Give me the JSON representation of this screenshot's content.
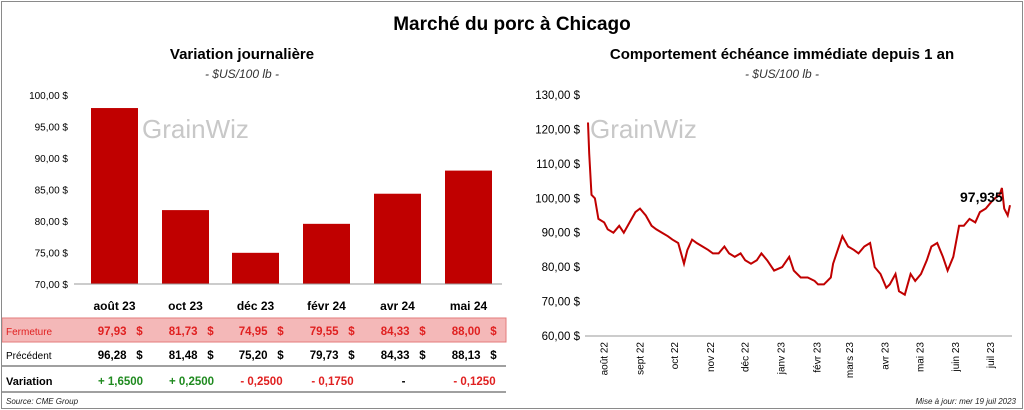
{
  "title": "Marché du porc à Chicago",
  "left_chart": {
    "title": "Variation journalière",
    "unit": "- $US/100 lb -"
  },
  "right_chart": {
    "title": "Comportement échéance immédiate depuis 1 an",
    "unit": "- $US/100 lb -",
    "last_value_label": "97,935"
  },
  "watermark": "GrainWiz",
  "table": {
    "rows": [
      {
        "label": "Fermeture",
        "values": [
          "97,93",
          "81,73",
          "74,95",
          "79,55",
          "84,33",
          "88,00"
        ],
        "suffix": "$"
      },
      {
        "label": "Précédent",
        "values": [
          "96,28",
          "81,48",
          "75,20",
          "79,73",
          "84,33",
          "88,13"
        ],
        "suffix": "$"
      },
      {
        "label": "Variation",
        "values": [
          "+ 1,6500",
          "+ 0,2500",
          "- 0,2500",
          "- 0,1750",
          "-",
          "- 0,1250"
        ]
      }
    ]
  },
  "colors": {
    "bar": "#c00000",
    "line": "#c00000",
    "highlight_row": "#f4b8b8",
    "positive": "#1f8a1f",
    "negative": "#e02020"
  },
  "source": "Source: CME Group",
  "updated": "Mise à jour: mer 19 juil 2023",
  "chart_data": [
    {
      "type": "bar",
      "categories": [
        "août 23",
        "oct 23",
        "déc 23",
        "févr 24",
        "avr 24",
        "mai 24"
      ],
      "values": [
        97.93,
        81.73,
        74.95,
        79.55,
        84.33,
        88.0
      ],
      "title": "Variation journalière",
      "ylim": [
        70,
        100
      ],
      "yticks": [
        "100,00 $",
        "95,00 $",
        "90,00 $",
        "85,00 $",
        "80,00 $",
        "75,00 $",
        "70,00 $"
      ],
      "grid": false
    },
    {
      "type": "line",
      "title": "Comportement échéance immédiate depuis 1 an",
      "ylim": [
        60,
        130
      ],
      "yticks": [
        "130,00 $",
        "120,00 $",
        "110,00 $",
        "100,00 $",
        "90,00 $",
        "80,00 $",
        "70,00 $",
        "60,00 $"
      ],
      "xticks": [
        "août 22",
        "sept 22",
        "oct 22",
        "nov 22",
        "déc 22",
        "janv 23",
        "févr 23",
        "mars 23",
        "avr 23",
        "mai 23",
        "juin 23",
        "juil 23"
      ],
      "x": [
        "2022-07-19",
        "2022-07-20",
        "2022-07-22",
        "2022-07-25",
        "2022-07-28",
        "2022-08-02",
        "2022-08-05",
        "2022-08-10",
        "2022-08-15",
        "2022-08-19",
        "2022-08-24",
        "2022-08-29",
        "2022-09-02",
        "2022-09-07",
        "2022-09-12",
        "2022-09-16",
        "2022-09-21",
        "2022-09-26",
        "2022-09-30",
        "2022-10-05",
        "2022-10-10",
        "2022-10-13",
        "2022-10-17",
        "2022-10-21",
        "2022-10-26",
        "2022-10-31",
        "2022-11-04",
        "2022-11-09",
        "2022-11-14",
        "2022-11-18",
        "2022-11-23",
        "2022-11-28",
        "2022-12-02",
        "2022-12-07",
        "2022-12-12",
        "2022-12-16",
        "2022-12-21",
        "2022-12-27",
        "2023-01-03",
        "2023-01-09",
        "2023-01-13",
        "2023-01-19",
        "2023-01-25",
        "2023-01-31",
        "2023-02-03",
        "2023-02-08",
        "2023-02-14",
        "2023-02-16",
        "2023-02-21",
        "2023-02-24",
        "2023-03-01",
        "2023-03-06",
        "2023-03-10",
        "2023-03-15",
        "2023-03-20",
        "2023-03-24",
        "2023-03-29",
        "2023-04-03",
        "2023-04-06",
        "2023-04-11",
        "2023-04-14",
        "2023-04-19",
        "2023-04-24",
        "2023-04-28",
        "2023-05-03",
        "2023-05-08",
        "2023-05-12",
        "2023-05-17",
        "2023-05-22",
        "2023-05-26",
        "2023-05-31",
        "2023-06-05",
        "2023-06-09",
        "2023-06-14",
        "2023-06-19",
        "2023-06-23",
        "2023-06-28",
        "2023-07-03",
        "2023-07-06",
        "2023-07-10",
        "2023-07-12",
        "2023-07-14",
        "2023-07-17",
        "2023-07-19"
      ],
      "values": [
        122,
        113,
        101,
        100,
        94,
        93,
        91,
        90,
        92,
        90,
        93,
        96,
        97,
        95,
        92,
        91,
        90,
        89,
        88,
        87,
        81,
        85,
        88,
        87,
        86,
        85,
        84,
        84,
        86,
        84,
        83,
        84,
        82,
        81,
        82,
        84,
        82,
        79,
        80,
        83,
        79,
        77,
        77,
        76,
        75,
        75,
        77,
        81,
        86,
        89,
        86,
        85,
        84,
        86,
        87,
        80,
        78,
        74,
        75,
        78,
        73,
        72,
        78,
        76,
        78,
        82,
        86,
        87,
        83,
        79,
        83,
        92,
        92,
        94,
        93,
        96,
        97,
        99,
        100,
        101,
        103,
        97,
        95,
        98
      ]
    }
  ]
}
